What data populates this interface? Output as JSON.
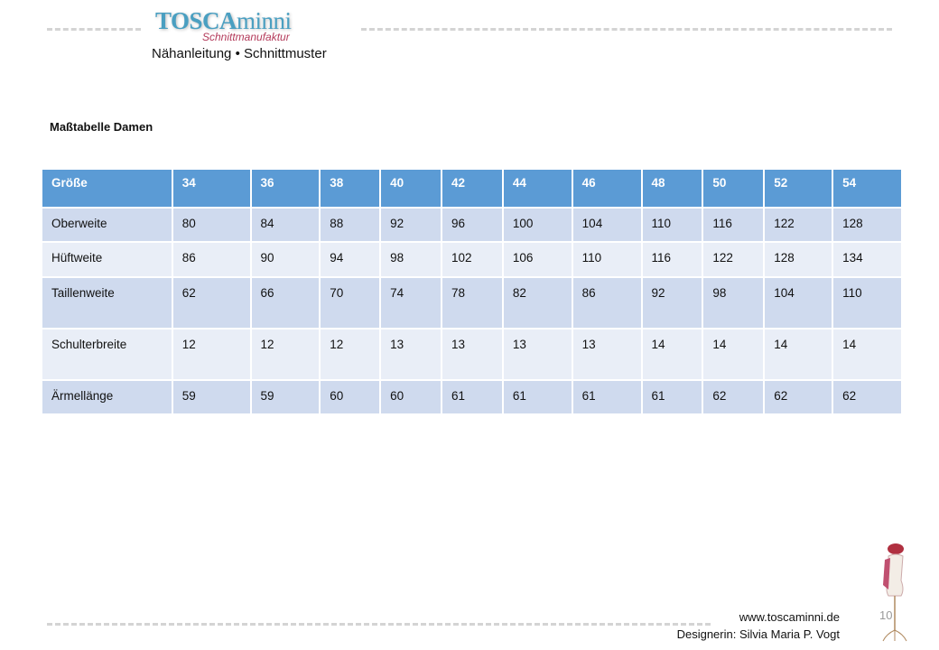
{
  "header": {
    "logo_main": "TOSCA",
    "logo_main2": "minni",
    "logo_sub": "Schnittmanufaktur",
    "subtitle": "Nähanleitung • Schnittmuster"
  },
  "heading": "Maßtabelle Damen",
  "table": {
    "columns": [
      "Größe",
      "34",
      "36",
      "38",
      "40",
      "42",
      "44",
      "46",
      "48",
      "50",
      "52",
      "54"
    ],
    "rows": [
      [
        "Oberweite",
        "80",
        "84",
        "88",
        "92",
        "96",
        "100",
        "104",
        "110",
        "116",
        "122",
        "128"
      ],
      [
        "Hüftweite",
        "86",
        "90",
        "94",
        "98",
        "102",
        "106",
        "110",
        "116",
        "122",
        "128",
        "134"
      ],
      [
        "Taillenweite",
        "62",
        "66",
        "70",
        "74",
        "78",
        "82",
        "86",
        "92",
        "98",
        "104",
        "110"
      ],
      [
        "Schulterbreite",
        "12",
        "12",
        "12",
        "13",
        "13",
        "13",
        "13",
        "14",
        "14",
        "14",
        "14"
      ],
      [
        "Ärmellänge",
        "59",
        "59",
        "60",
        "60",
        "61",
        "61",
        "61",
        "61",
        "62",
        "62",
        "62"
      ]
    ]
  },
  "footer": {
    "website": "www.toscaminni.de",
    "designer": "Designerin: Silvia Maria P. Vogt",
    "page": "10"
  },
  "colors": {
    "header": "#5b9bd5",
    "row_dark": "#cfdaee",
    "row_light": "#e9eef7"
  }
}
